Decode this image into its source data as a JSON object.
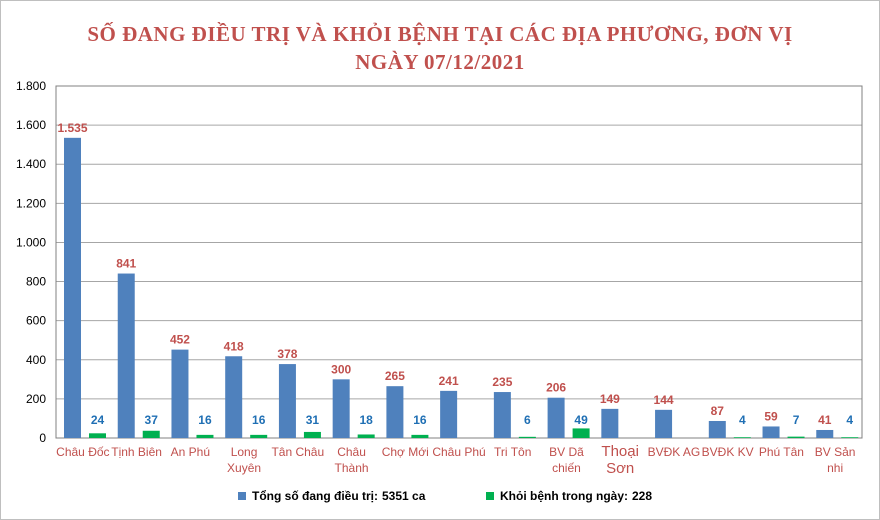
{
  "chart_data": {
    "type": "bar",
    "title_line1": "SỐ ĐANG ĐIỀU TRỊ VÀ KHỎI BỆNH TẠI CÁC ĐỊA PHƯƠNG, ĐƠN VỊ",
    "title_line2": "NGÀY 07/12/2021",
    "categories": [
      [
        "Châu Đốc"
      ],
      [
        "Tịnh Biên"
      ],
      [
        "An Phú"
      ],
      [
        "Long",
        "Xuyên"
      ],
      [
        "Tân Châu"
      ],
      [
        "Châu",
        "Thành"
      ],
      [
        "Chợ Mới"
      ],
      [
        "Châu Phú"
      ],
      [
        "Tri Tôn"
      ],
      [
        "BV Dã",
        "chiến"
      ],
      [
        "Thoại",
        "Sơn"
      ],
      [
        "BVĐK AG"
      ],
      [
        "BVĐK KV"
      ],
      [
        "Phú Tân"
      ],
      [
        "BV Sản",
        "nhi"
      ]
    ],
    "series": [
      {
        "name": "Tổng số đang điều trị:",
        "legend_value": "5351 ca",
        "color": "#4f81bd",
        "values": [
          1535,
          841,
          452,
          418,
          378,
          300,
          265,
          241,
          235,
          206,
          149,
          144,
          87,
          59,
          41
        ],
        "labels": [
          "1.535",
          "841",
          "452",
          "418",
          "378",
          "300",
          "265",
          "241",
          "235",
          "206",
          "149",
          "144",
          "87",
          "59",
          "41"
        ]
      },
      {
        "name": "Khỏi bệnh trong ngày:",
        "legend_value": "228",
        "color": "#00b050",
        "values": [
          24,
          37,
          16,
          16,
          31,
          18,
          16,
          null,
          6,
          49,
          null,
          null,
          4,
          7,
          4
        ],
        "labels": [
          "24",
          "37",
          "16",
          "16",
          "31",
          "18",
          "16",
          "",
          "6",
          "49",
          "",
          "",
          "4",
          "7",
          "4"
        ]
      }
    ],
    "ylim": [
      0,
      1800
    ],
    "yticks": [
      0,
      200,
      400,
      600,
      800,
      1000,
      1200,
      1400,
      1600,
      1800
    ],
    "ytick_labels": [
      "0",
      "200",
      "400",
      "600",
      "800",
      "1.000",
      "1.200",
      "1.400",
      "1.600",
      "1.800"
    ],
    "xlabel": "",
    "ylabel": "",
    "grid": true,
    "legend_position": "bottom"
  }
}
